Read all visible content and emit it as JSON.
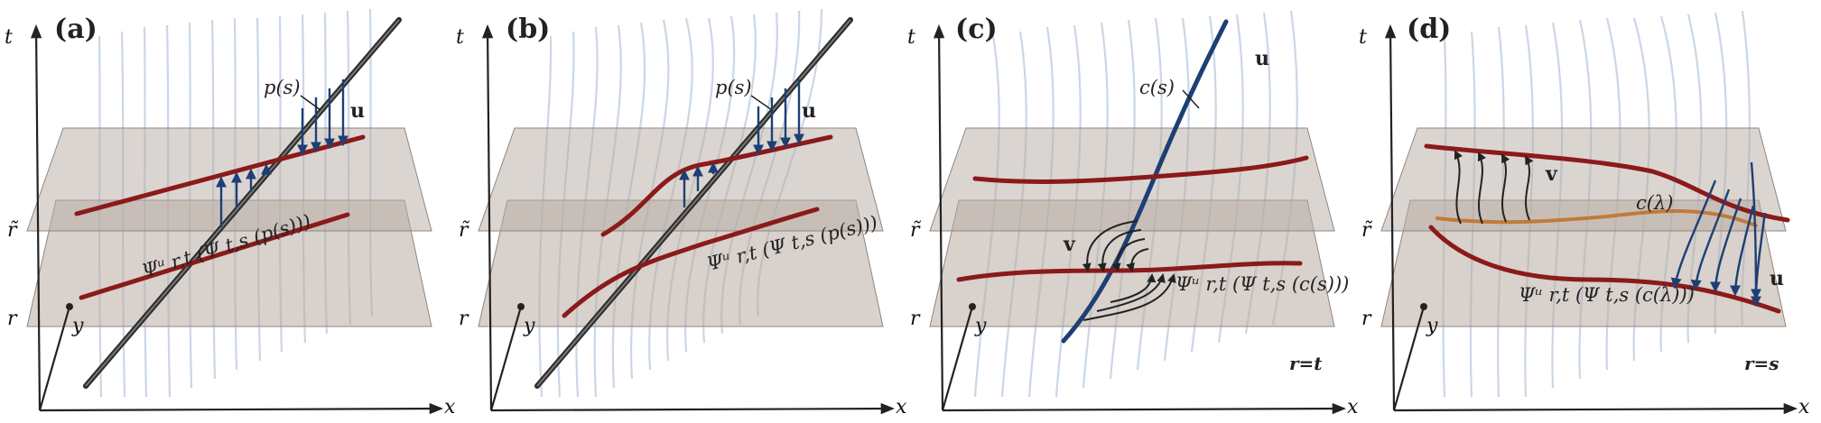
{
  "panels": [
    {
      "label": "(a)",
      "axis_t": "t",
      "axis_x": "x",
      "axis_y": "y",
      "level_rtilde": "r̃",
      "level_r": "r",
      "label_ps": "p(s)",
      "label_u": "u",
      "formula": "Ψᵘ r,t (Ψ t,s (p(s)))",
      "condition": ""
    },
    {
      "label": "(b)",
      "axis_t": "t",
      "axis_x": "x",
      "axis_y": "y",
      "level_rtilde": "r̃",
      "level_r": "r",
      "label_ps": "p(s)",
      "label_u": "u",
      "formula": "Ψᵘ r,t (Ψ t,s (p(s)))",
      "condition": ""
    },
    {
      "label": "(c)",
      "axis_t": "t",
      "axis_x": "x",
      "axis_y": "y",
      "level_rtilde": "r̃",
      "level_r": "r",
      "label_cs": "c(s)",
      "label_u": "u",
      "label_v": "v",
      "formula": "Ψᵘ r,t (Ψ t,s (c(s)))",
      "condition": "r=t"
    },
    {
      "label": "(d)",
      "axis_t": "t",
      "axis_x": "x",
      "axis_y": "y",
      "level_rtilde": "r̃",
      "level_r": "r",
      "label_clambda": "c(λ)",
      "label_u": "u",
      "label_v": "v",
      "formula": "Ψᵘ r,t (Ψ t,s (c(λ)))",
      "condition": "r=s"
    }
  ],
  "colors": {
    "pathline_red": "#8b1a1a",
    "streakline_blue": "#1d3f73",
    "orange_curve": "#c07a3a",
    "plane": "#b8aca3",
    "background_streams": "#8aa6c8"
  }
}
